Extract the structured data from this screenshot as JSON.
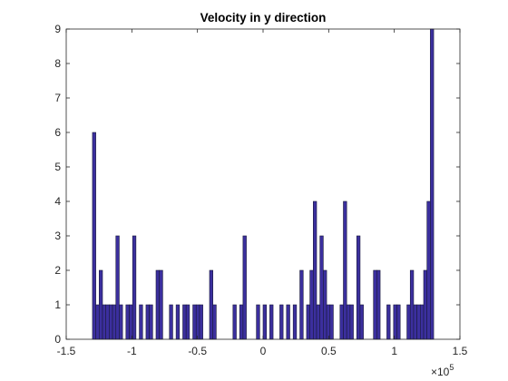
{
  "chart_data": {
    "type": "bar",
    "title": "Velocity in y direction",
    "xlabel": "",
    "ylabel": "",
    "xlim": [
      -150000,
      150000
    ],
    "ylim": [
      0,
      9
    ],
    "x_tick_values": [
      -150000,
      -100000,
      -50000,
      0,
      50000,
      100000,
      150000
    ],
    "x_tick_labels": [
      "-1.5",
      "-1",
      "-0.5",
      "0",
      "0.5",
      "1",
      "1.5"
    ],
    "x_exponent_label": "×10",
    "x_exponent_power": "5",
    "y_ticks": [
      0,
      1,
      2,
      3,
      4,
      5,
      6,
      7,
      8,
      9
    ],
    "grid": false,
    "bar_color": "#3b2f9e",
    "bar_edge_color": "#1a1a3a",
    "bins": {
      "start": -130000,
      "end": 130000,
      "counts": [
        6,
        1,
        2,
        1,
        1,
        1,
        1,
        3,
        1,
        0,
        1,
        1,
        3,
        0,
        1,
        0,
        1,
        1,
        0,
        2,
        2,
        0,
        0,
        1,
        0,
        1,
        0,
        1,
        1,
        0,
        1,
        1,
        1,
        0,
        0,
        2,
        1,
        0,
        0,
        0,
        0,
        0,
        1,
        0,
        1,
        3,
        0,
        0,
        0,
        1,
        0,
        1,
        0,
        1,
        0,
        0,
        1,
        0,
        1,
        0,
        1,
        0,
        2,
        0,
        1,
        2,
        4,
        1,
        3,
        2,
        1,
        1,
        0,
        0,
        1,
        4,
        1,
        1,
        0,
        3,
        1,
        0,
        0,
        0,
        2,
        2,
        0,
        0,
        1,
        0,
        1,
        1,
        0,
        0,
        1,
        2,
        1,
        1,
        1,
        2,
        4,
        9
      ]
    }
  }
}
